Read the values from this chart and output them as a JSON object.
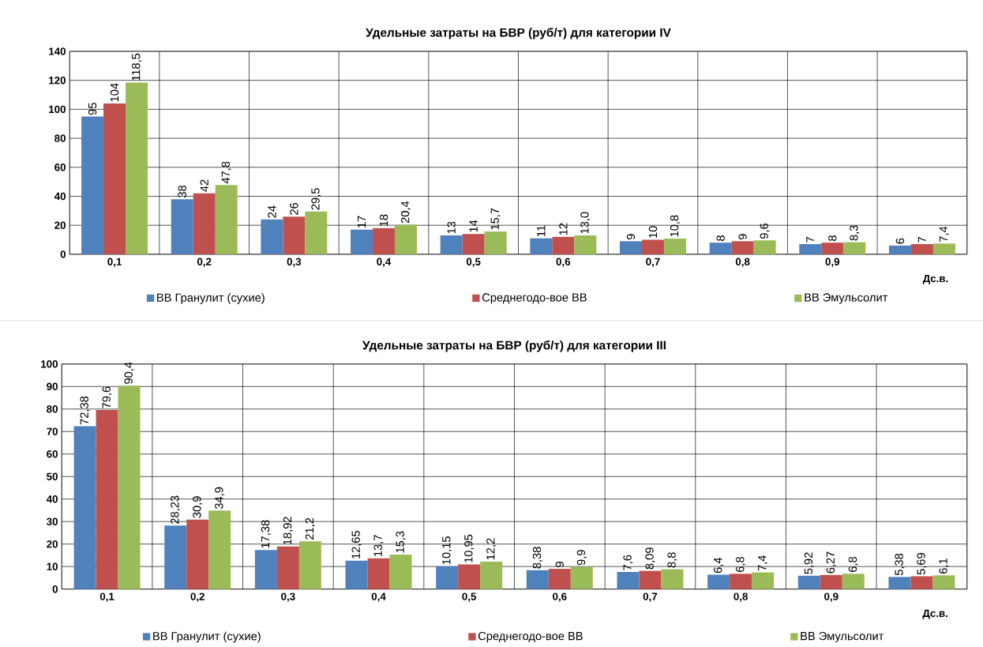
{
  "chart_data": [
    {
      "type": "bar",
      "title": "Удельные затраты на БВР (руб/т) для категории IV",
      "xlabel": "Дс.в.",
      "categories": [
        "0,1",
        "0,2",
        "0,3",
        "0,4",
        "0,5",
        "0,6",
        "0,7",
        "0,8",
        "0,9",
        null
      ],
      "ylim": [
        0,
        140
      ],
      "yticks": [
        0,
        20,
        40,
        60,
        80,
        100,
        120,
        140
      ],
      "grid": true,
      "legend": "bottom",
      "series": [
        {
          "name": "ВВ Гранулит (сухие)",
          "color": "#4f81bd",
          "values": [
            95,
            38,
            24,
            17,
            13,
            11,
            9,
            8,
            7,
            6
          ],
          "value_labels": [
            "95",
            "38",
            "24",
            "17",
            "13",
            "11",
            "9",
            "8",
            "7",
            "6"
          ]
        },
        {
          "name": "Среднегодо-вое ВВ",
          "color": "#c0504d",
          "values": [
            104,
            42,
            26,
            18,
            14,
            12,
            10,
            9,
            8,
            7
          ],
          "value_labels": [
            "104",
            "42",
            "26",
            "18",
            "14",
            "12",
            "10",
            "9",
            "8",
            "7"
          ]
        },
        {
          "name": "ВВ Эмульсолит",
          "color": "#9bbb59",
          "values": [
            118.5,
            47.8,
            29.5,
            20.4,
            15.7,
            13.0,
            10.8,
            9.6,
            8.3,
            7.4
          ],
          "value_labels": [
            "118,5",
            "47,8",
            "29,5",
            "20,4",
            "15,7",
            "13,0",
            "10,8",
            "9,6",
            "8,3",
            "7,4"
          ]
        }
      ]
    },
    {
      "type": "bar",
      "title": "Удельные затраты на БВР (руб/т) для категории III",
      "xlabel": "Дс.в.",
      "categories": [
        "0,1",
        "0,2",
        "0,3",
        "0,4",
        "0,5",
        "0,6",
        "0,7",
        "0,8",
        "0,9",
        null
      ],
      "ylim": [
        0,
        100
      ],
      "yticks": [
        0,
        10,
        20,
        30,
        40,
        50,
        60,
        70,
        80,
        90,
        100
      ],
      "grid": true,
      "legend": "bottom",
      "series": [
        {
          "name": "ВВ Гранулит (сухие)",
          "color": "#4f81bd",
          "values": [
            72.38,
            28.23,
            17.38,
            12.65,
            10.15,
            8.38,
            7.6,
            6.4,
            5.92,
            5.38
          ],
          "value_labels": [
            "72,38",
            "28,23",
            "17,38",
            "12,65",
            "10,15",
            "8,38",
            "7,6",
            "6,4",
            "5,92",
            "5,38"
          ]
        },
        {
          "name": "Среднегодо-вое ВВ",
          "color": "#c0504d",
          "values": [
            79.6,
            30.9,
            18.92,
            13.7,
            10.95,
            9,
            8.09,
            6.8,
            6.27,
            5.69
          ],
          "value_labels": [
            "79,6",
            "30,9",
            "18,92",
            "13,7",
            "10,95",
            "9",
            "8,09",
            "6,8",
            "6,27",
            "5,69"
          ]
        },
        {
          "name": "ВВ Эмульсолит",
          "color": "#9bbb59",
          "values": [
            90.4,
            34.9,
            21.2,
            15.3,
            12.2,
            9.9,
            8.8,
            7.4,
            6.8,
            6.1
          ],
          "value_labels": [
            "90,4",
            "34,9",
            "21,2",
            "15,3",
            "12,2",
            "9,9",
            "8,8",
            "7,4",
            "6,8",
            "6,1"
          ]
        }
      ]
    }
  ]
}
